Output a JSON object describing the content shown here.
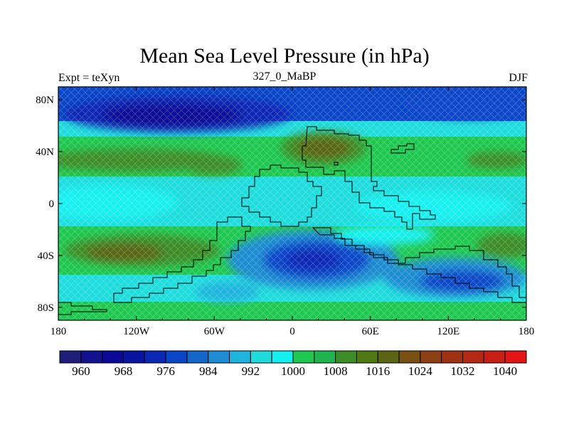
{
  "title": "Mean Sea Level Pressure (in hPa)",
  "left_string": "Expt = teXyn",
  "center_string": "327_0_MaBP",
  "right_string": "DJF",
  "map": {
    "type": "heatmap",
    "variable": "Mean Sea Level Pressure",
    "units": "hPa",
    "lon_range": [
      -180,
      180
    ],
    "lat_range": [
      -90,
      90
    ],
    "x_ticks": [
      {
        "value": -180,
        "label": "180"
      },
      {
        "value": -120,
        "label": "120W"
      },
      {
        "value": -60,
        "label": "60W"
      },
      {
        "value": 0,
        "label": "0"
      },
      {
        "value": 60,
        "label": "60E"
      },
      {
        "value": 120,
        "label": "120E"
      },
      {
        "value": 180,
        "label": "180"
      }
    ],
    "y_ticks": [
      {
        "value": 80,
        "label": "80N"
      },
      {
        "value": 40,
        "label": "40N"
      },
      {
        "value": 0,
        "label": "0"
      },
      {
        "value": -40,
        "label": "40S"
      },
      {
        "value": -80,
        "label": "80S"
      }
    ],
    "pressure_systems": [
      {
        "kind": "low",
        "lon": -140,
        "lat": 68,
        "value": 964
      },
      {
        "kind": "low",
        "lon": 20,
        "lat": -45,
        "value": 978
      },
      {
        "kind": "low",
        "lon": 100,
        "lat": -55,
        "value": 984
      },
      {
        "kind": "high",
        "lon": 20,
        "lat": 40,
        "value": 1016
      },
      {
        "kind": "high",
        "lon": -110,
        "lat": 30,
        "value": 1014
      },
      {
        "kind": "high",
        "lon": -130,
        "lat": -38,
        "value": 1014
      },
      {
        "kind": "high",
        "lon": 150,
        "lat": 30,
        "value": 1010
      }
    ]
  },
  "colorbar": {
    "levels": [
      956,
      960,
      964,
      968,
      972,
      976,
      980,
      984,
      988,
      992,
      996,
      1000,
      1004,
      1008,
      1012,
      1016,
      1020,
      1024,
      1028,
      1032,
      1036,
      1040,
      1044
    ],
    "labels": [
      "960",
      "968",
      "976",
      "984",
      "992",
      "1000",
      "1008",
      "1016",
      "1024",
      "1032",
      "1040"
    ],
    "colors": [
      "#1e1e78",
      "#12128c",
      "#0a0a96",
      "#0814a0",
      "#0a28b4",
      "#0a46c8",
      "#1466c8",
      "#1e8cd2",
      "#1eb4dc",
      "#1edcdc",
      "#14f0f0",
      "#1ec850",
      "#1eb450",
      "#3c8c28",
      "#507814",
      "#5a6414",
      "#785014",
      "#8c4014",
      "#a03214",
      "#b42814",
      "#c81e14",
      "#e61414"
    ]
  }
}
